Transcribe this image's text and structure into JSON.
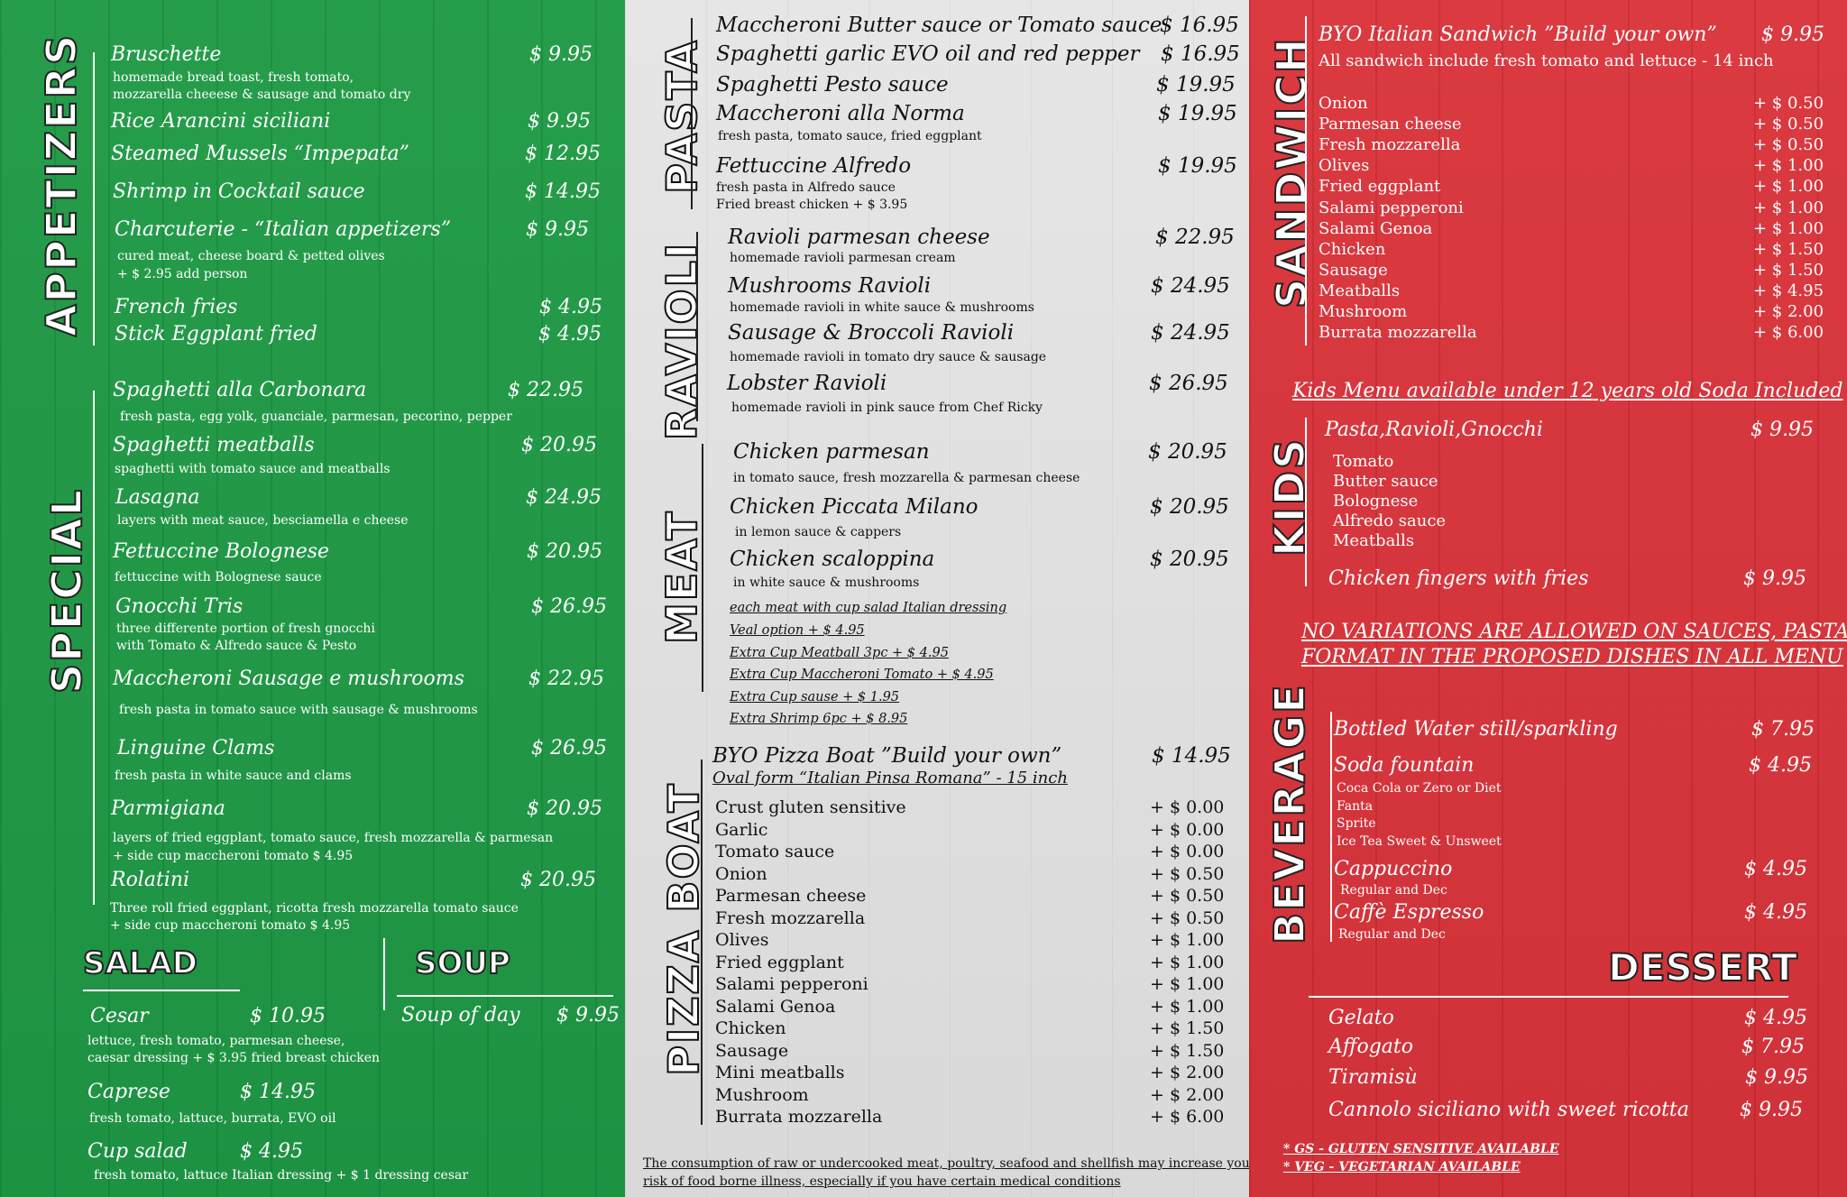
{
  "sections": {
    "appetizers": "APPETIZERS",
    "special": "SPECIAL",
    "salad": "SALAD",
    "soup": "SOUP",
    "pasta": "PASTA",
    "ravioli": "RAVIOLI",
    "meat": "MEAT",
    "pizza_boat": "PIZZA BOAT",
    "sandwich": "SANDWICH",
    "kids": "KIDS",
    "beverage": "BEVERAGE",
    "dessert": "DESSERT"
  },
  "appetizers": [
    {
      "name": "Bruschette",
      "price": "$ 9.95",
      "desc": [
        "homemade bread toast, fresh tomato,",
        "mozzarella cheeese & sausage and tomato dry"
      ]
    },
    {
      "name": "Rice Arancini siciliani",
      "price": "$ 9.95"
    },
    {
      "name": "Steamed Mussels “Impepata”",
      "price": "$ 12.95"
    },
    {
      "name": "Shrimp in Cocktail sauce",
      "price": "$ 14.95"
    },
    {
      "name": "Charcuterie - “Italian appetizers”",
      "price": "$ 9.95",
      "desc": [
        "cured meat, cheese board & petted olives",
        "+ $ 2.95 add person"
      ]
    },
    {
      "name": "French fries",
      "price": "$ 4.95"
    },
    {
      "name": "Stick Eggplant fried",
      "price": "$ 4.95"
    }
  ],
  "special": [
    {
      "name": "Spaghetti alla Carbonara",
      "price": "$ 22.95",
      "desc": [
        "fresh pasta, egg yolk, guanciale, parmesan, pecorino, pepper"
      ]
    },
    {
      "name": "Spaghetti meatballs",
      "price": "$ 20.95",
      "desc": [
        "spaghetti with tomato sauce and meatballs"
      ]
    },
    {
      "name": "Lasagna",
      "price": "$ 24.95",
      "desc": [
        "layers with meat sauce, besciamella e cheese"
      ]
    },
    {
      "name": "Fettuccine Bolognese",
      "price": "$ 20.95",
      "desc": [
        "fettuccine with Bolognese sauce"
      ]
    },
    {
      "name": "Gnocchi Tris",
      "price": "$ 26.95",
      "desc": [
        "three differente portion of fresh gnocchi",
        "with Tomato & Alfredo sauce & Pesto"
      ]
    },
    {
      "name": "Maccheroni Sausage e mushrooms",
      "price": "$ 22.95",
      "desc": [
        "fresh pasta in tomato sauce with sausage & mushrooms"
      ]
    },
    {
      "name": "Linguine Clams",
      "price": "$ 26.95",
      "desc": [
        "fresh pasta in white sauce and clams"
      ]
    },
    {
      "name": "Parmigiana",
      "price": "$ 20.95",
      "desc": [
        "layers of fried eggplant, tomato sauce, fresh mozzarella & parmesan",
        "+ side cup maccheroni tomato $ 4.95"
      ]
    },
    {
      "name": "Rolatini",
      "price": "$ 20.95",
      "desc": [
        "Three  roll fried eggplant, ricotta fresh mozzarella tomato sauce",
        "+ side cup maccheroni tomato  $ 4.95"
      ]
    }
  ],
  "salad": [
    {
      "name": "Cesar",
      "price": "$ 10.95",
      "desc": [
        "lettuce, fresh tomato, parmesan cheese,",
        "caesar dressing + $ 3.95 fried breast chicken"
      ]
    },
    {
      "name": "Caprese",
      "price": "$ 14.95",
      "desc": [
        "fresh tomato, lattuce, burrata, EVO oil"
      ]
    },
    {
      "name": "Cup salad",
      "price": "$ 4.95",
      "desc": [
        "fresh tomato, lattuce Italian dressing + $ 1 dressing cesar"
      ]
    }
  ],
  "soup": [
    {
      "name": "Soup of day",
      "price": "$ 9.95"
    }
  ],
  "pasta": [
    {
      "name": "Maccheroni Butter sauce or Tomato sauce",
      "price": "$ 16.95"
    },
    {
      "name": "Spaghetti garlic EVO oil and red pepper",
      "price": "$ 16.95"
    },
    {
      "name": "Spaghetti Pesto sauce",
      "price": "$ 19.95"
    },
    {
      "name": "Maccheroni alla Norma",
      "price": "$ 19.95",
      "desc": [
        "fresh pasta, tomato sauce, fried eggplant"
      ]
    },
    {
      "name": "Fettuccine Alfredo",
      "price": "$ 19.95",
      "desc": [
        "fresh pasta in Alfredo sauce",
        "Fried breast chicken + $ 3.95"
      ]
    }
  ],
  "ravioli": [
    {
      "name": "Ravioli parmesan cheese",
      "price": "$ 22.95",
      "desc": [
        "homemade ravioli parmesan cream"
      ]
    },
    {
      "name": "Mushrooms Ravioli",
      "price": "$ 24.95",
      "desc": [
        "homemade ravioli in white sauce & mushrooms"
      ]
    },
    {
      "name": "Sausage & Broccoli Ravioli",
      "price": "$ 24.95",
      "desc": [
        "homemade ravioli in tomato dry sauce & sausage"
      ]
    },
    {
      "name": "Lobster Ravioli",
      "price": "$ 26.95",
      "desc": [
        "homemade ravioli in pink sauce from Chef Ricky"
      ]
    }
  ],
  "meat": [
    {
      "name": "Chicken parmesan",
      "price": "$ 20.95",
      "desc": [
        "in tomato sauce, fresh mozzarella & parmesan cheese"
      ]
    },
    {
      "name": "Chicken Piccata Milano",
      "price": "$ 20.95",
      "desc": [
        "in lemon sauce & cappers"
      ]
    },
    {
      "name": "Chicken scaloppina",
      "price": "$ 20.95",
      "desc": [
        "in white sauce & mushrooms"
      ]
    }
  ],
  "meat_extras": [
    " each meat with cup salad Italian dressing",
    "Veal option + $ 4.95",
    "Extra Cup Meatball 3pc + $ 4.95",
    "Extra Cup Maccheroni Tomato + $ 4.95",
    "Extra Cup sause + $ 1.95",
    "Extra Shrimp 6pc  + $ 8.95"
  ],
  "pizza": {
    "title": "BYO Pizza Boat ”Build your own”",
    "price": "$ 14.95",
    "subtitle": " Oval form “Italian Pinsa Romana” - 15 inch",
    "toppings": [
      {
        "name": "Crust gluten sensitive",
        "price": "+ $ 0.00"
      },
      {
        "name": "Garlic",
        "price": "+ $ 0.00"
      },
      {
        "name": "Tomato sauce",
        "price": "+ $ 0.00"
      },
      {
        "name": "Onion",
        "price": "+ $ 0.50"
      },
      {
        "name": "Parmesan cheese",
        "price": "+ $ 0.50"
      },
      {
        "name": "Fresh mozzarella",
        "price": "+ $ 0.50"
      },
      {
        "name": "Olives",
        "price": "+ $ 1.00"
      },
      {
        "name": "Fried eggplant",
        "price": "+ $ 1.00"
      },
      {
        "name": "Salami pepperoni",
        "price": "+ $ 1.00"
      },
      {
        "name": "Salami Genoa",
        "price": "+ $ 1.00"
      },
      {
        "name": "Chicken",
        "price": "+ $ 1.50"
      },
      {
        "name": "Sausage",
        "price": "+ $ 1.50"
      },
      {
        "name": "Mini meatballs",
        "price": "+ $ 2.00"
      },
      {
        "name": "Mushroom",
        "price": "+ $ 2.00"
      },
      {
        "name": "Burrata mozzarella",
        "price": "+ $ 6.00"
      }
    ]
  },
  "disclaimer": [
    "The consumption of raw or undercooked meat, poultry, seafood and shellfish may increase your",
    "risk of food borne illness, especially if you have certain medical conditions"
  ],
  "sandwich": {
    "title": "BYO Italian Sandwich  ”Build your own”",
    "price": "$ 9.95",
    "subtitle": "All sandwich include fresh tomato and lettuce - 14 inch",
    "toppings": [
      {
        "name": "Onion",
        "price": "+ $ 0.50"
      },
      {
        "name": "Parmesan cheese",
        "price": "+ $ 0.50"
      },
      {
        "name": "Fresh mozzarella",
        "price": "+ $ 0.50"
      },
      {
        "name": "Olives",
        "price": "+ $ 1.00"
      },
      {
        "name": "Fried eggplant",
        "price": "+ $ 1.00"
      },
      {
        "name": "Salami pepperoni",
        "price": "+ $ 1.00"
      },
      {
        "name": "Salami Genoa",
        "price": "+ $ 1.00"
      },
      {
        "name": "Chicken",
        "price": "+ $ 1.50"
      },
      {
        "name": "Sausage",
        "price": "+ $ 1.50"
      },
      {
        "name": "Meatballs",
        "price": "+ $ 4.95"
      },
      {
        "name": "Mushroom",
        "price": "+ $ 2.00"
      },
      {
        "name": "Burrata mozzarella",
        "price": "+ $ 6.00"
      }
    ]
  },
  "kids": {
    "note": "Kids Menu available under 12 years old Soda Included",
    "items": [
      {
        "name": "Pasta,Ravioli,Gnocchi",
        "price": "$ 9.95",
        "options": [
          "Tomato",
          "Butter sauce",
          "Bolognese",
          "Alfredo sauce",
          "Meatballs"
        ]
      },
      {
        "name": "Chicken fingers with fries",
        "price": "$ 9.95"
      }
    ]
  },
  "no_variations": [
    "NO VARIATIONS ARE ALLOWED ON SAUCES, PASTA",
    "FORMAT IN THE PROPOSED DISHES IN ALL MENU"
  ],
  "beverage": [
    {
      "name": "Bottled Water still/sparkling",
      "price": "$ 7.95"
    },
    {
      "name": "Soda fountain",
      "price": "$ 4.95",
      "desc": [
        "Coca Cola or Zero or Diet",
        "Fanta",
        "Sprite",
        "Ice Tea Sweet & Unsweet"
      ]
    },
    {
      "name": "Cappuccino",
      "price": "$ 4.95",
      "desc": [
        "Regular and Dec"
      ]
    },
    {
      "name": "Caffè Espresso",
      "price": "$ 4.95",
      "desc": [
        "Regular and Dec"
      ]
    }
  ],
  "dessert": [
    {
      "name": "Gelato",
      "price": "$ 4.95"
    },
    {
      "name": "Affogato",
      "price": "$ 7.95"
    },
    {
      "name": "Tiramisù",
      "price": "$ 9.95"
    },
    {
      "name": "Cannolo siciliano with sweet ricotta",
      "price": "$ 9.95"
    }
  ],
  "footnotes": [
    "* GS - GLUTEN SENSITIVE AVAILABLE",
    "* VEG - VEGETARIAN AVAILABLE"
  ],
  "colors": {
    "green": "#1f9a45",
    "white": "#e0e0e0",
    "red": "#d4303a"
  }
}
